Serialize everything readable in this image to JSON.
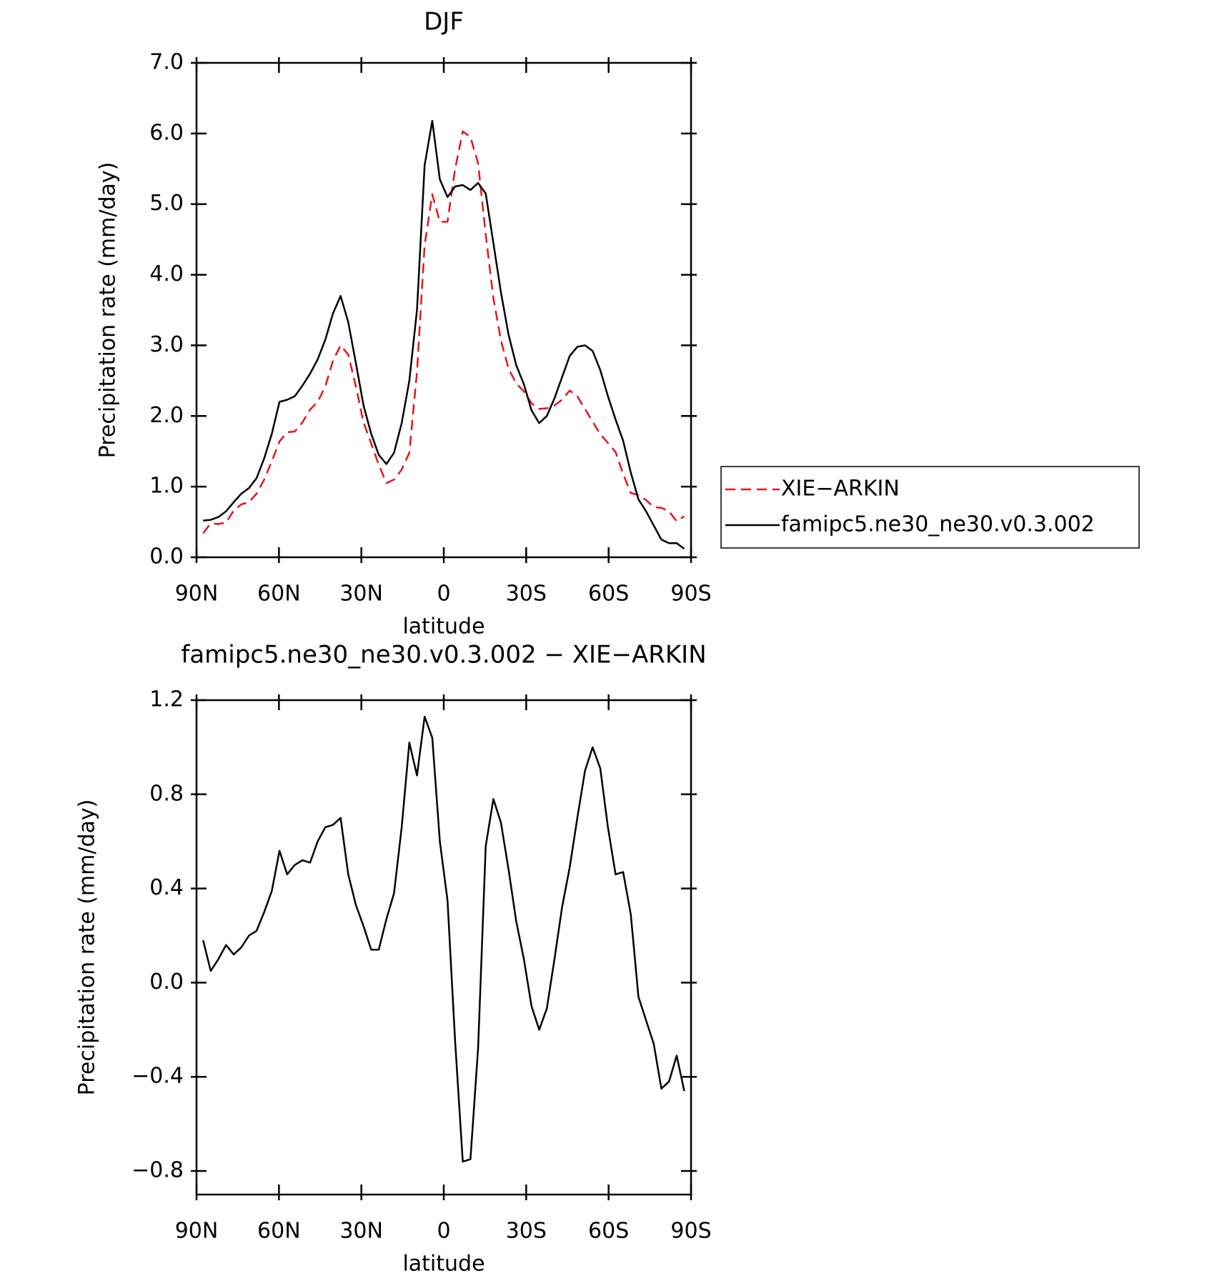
{
  "chart_data": [
    {
      "type": "line",
      "title": "DJF",
      "xlabel": "latitude",
      "ylabel": "Precipitation rate (mm/day)",
      "x": [
        87.6,
        84.82,
        82.04,
        79.26,
        76.48,
        73.7,
        70.92,
        68.14,
        65.36,
        62.58,
        59.8,
        57.02,
        54.24,
        51.46,
        48.68,
        45.9,
        43.12,
        40.34,
        37.56,
        34.78,
        32.0,
        29.22,
        26.44,
        23.66,
        20.88,
        18.1,
        15.32,
        12.54,
        9.76,
        6.98,
        4.2,
        1.42,
        -1.36,
        -4.14,
        -6.92,
        -9.7,
        -12.48,
        -15.26,
        -18.04,
        -20.82,
        -23.6,
        -26.38,
        -29.16,
        -31.94,
        -34.72,
        -37.5,
        -40.28,
        -43.06,
        -45.84,
        -48.62,
        -51.4,
        -54.18,
        -56.96,
        -59.74,
        -62.52,
        -65.3,
        -68.08,
        -70.86,
        -73.64,
        -76.42,
        -79.2,
        -81.98,
        -84.76,
        -87.54
      ],
      "series": [
        {
          "name": "XIE−ARKIN",
          "color": "#e8141c",
          "dash": true,
          "values": [
            0.34,
            0.48,
            0.47,
            0.49,
            0.66,
            0.75,
            0.78,
            0.9,
            1.1,
            1.36,
            1.64,
            1.77,
            1.78,
            1.91,
            2.09,
            2.2,
            2.42,
            2.78,
            3.0,
            2.87,
            2.42,
            1.91,
            1.61,
            1.31,
            1.05,
            1.1,
            1.24,
            1.48,
            2.62,
            4.42,
            5.14,
            4.75,
            4.75,
            5.5,
            6.03,
            5.95,
            5.58,
            4.57,
            3.67,
            3.07,
            2.67,
            2.46,
            2.35,
            2.18,
            2.1,
            2.11,
            2.15,
            2.23,
            2.36,
            2.28,
            2.1,
            1.92,
            1.74,
            1.62,
            1.49,
            1.18,
            0.91,
            0.88,
            0.81,
            0.71,
            0.7,
            0.65,
            0.51,
            0.58
          ]
        },
        {
          "name": "famipc5.ne30_ne30.v0.3.002",
          "color": "#000000",
          "dash": false,
          "values": [
            0.52,
            0.53,
            0.57,
            0.65,
            0.78,
            0.9,
            0.98,
            1.12,
            1.4,
            1.75,
            2.2,
            2.23,
            2.28,
            2.43,
            2.6,
            2.8,
            3.08,
            3.45,
            3.7,
            3.33,
            2.75,
            2.15,
            1.75,
            1.45,
            1.32,
            1.48,
            1.9,
            2.5,
            3.5,
            5.55,
            6.18,
            5.35,
            5.1,
            5.25,
            5.27,
            5.2,
            5.3,
            5.15,
            4.45,
            3.75,
            3.15,
            2.72,
            2.45,
            2.08,
            1.9,
            2.0,
            2.25,
            2.55,
            2.85,
            2.98,
            3.0,
            2.92,
            2.65,
            2.28,
            1.95,
            1.65,
            1.2,
            0.82,
            0.65,
            0.45,
            0.25,
            0.2,
            0.2,
            0.12
          ]
        }
      ],
      "xlim": [
        90,
        -90
      ],
      "xticks": [
        {
          "value": 90,
          "label": "90N"
        },
        {
          "value": 60,
          "label": "60N"
        },
        {
          "value": 30,
          "label": "30N"
        },
        0,
        {
          "value": -30,
          "label": "30S"
        },
        {
          "value": -60,
          "label": "60S"
        },
        {
          "value": -90,
          "label": "90S"
        }
      ],
      "ylim": [
        0,
        7
      ],
      "yticks": [
        {
          "value": 0,
          "label": "0.0"
        },
        {
          "value": 1,
          "label": "1.0"
        },
        {
          "value": 2,
          "label": "2.0"
        },
        {
          "value": 3,
          "label": "3.0"
        },
        {
          "value": 4,
          "label": "4.0"
        },
        {
          "value": 5,
          "label": "5.0"
        },
        {
          "value": 6,
          "label": "6.0"
        },
        {
          "value": 7,
          "label": "7.0"
        }
      ],
      "legend": "outside-right"
    },
    {
      "type": "line",
      "title": "famipc5.ne30_ne30.v0.3.002 − XIE−ARKIN",
      "xlabel": "latitude",
      "ylabel": "Precipitation rate (mm/day)",
      "x": [
        87.6,
        84.82,
        82.04,
        79.26,
        76.48,
        73.7,
        70.92,
        68.14,
        65.36,
        62.58,
        59.8,
        57.02,
        54.24,
        51.46,
        48.68,
        45.9,
        43.12,
        40.34,
        37.56,
        34.78,
        32.0,
        29.22,
        26.44,
        23.66,
        20.88,
        18.1,
        15.32,
        12.54,
        9.76,
        6.98,
        4.2,
        1.42,
        -1.36,
        -4.14,
        -6.92,
        -9.7,
        -12.48,
        -15.26,
        -18.04,
        -20.82,
        -23.6,
        -26.38,
        -29.16,
        -31.94,
        -34.72,
        -37.5,
        -40.28,
        -43.06,
        -45.84,
        -48.62,
        -51.4,
        -54.18,
        -56.96,
        -59.74,
        -62.52,
        -65.3,
        -68.08,
        -70.86,
        -73.64,
        -76.42,
        -79.2,
        -81.98,
        -84.76,
        -87.54
      ],
      "values": [
        0.18,
        0.05,
        0.1,
        0.16,
        0.12,
        0.15,
        0.2,
        0.22,
        0.3,
        0.39,
        0.56,
        0.46,
        0.5,
        0.52,
        0.51,
        0.6,
        0.66,
        0.67,
        0.7,
        0.46,
        0.33,
        0.24,
        0.14,
        0.14,
        0.27,
        0.38,
        0.66,
        1.02,
        0.88,
        1.13,
        1.04,
        0.6,
        0.35,
        -0.25,
        -0.76,
        -0.75,
        -0.28,
        0.58,
        0.78,
        0.68,
        0.48,
        0.26,
        0.1,
        -0.1,
        -0.2,
        -0.11,
        0.1,
        0.32,
        0.49,
        0.7,
        0.9,
        1.0,
        0.91,
        0.66,
        0.46,
        0.47,
        0.29,
        -0.06,
        -0.16,
        -0.26,
        -0.45,
        -0.42,
        -0.31,
        -0.46
      ],
      "color": "#000000",
      "xlim": [
        90,
        -90
      ],
      "xticks": [
        {
          "value": 90,
          "label": "90N"
        },
        {
          "value": 60,
          "label": "60N"
        },
        {
          "value": 30,
          "label": "30N"
        },
        0,
        {
          "value": -30,
          "label": "30S"
        },
        {
          "value": -60,
          "label": "60S"
        },
        {
          "value": -90,
          "label": "90S"
        }
      ],
      "ylim": [
        -0.9,
        1.2
      ],
      "yticks": [
        {
          "value": -0.8,
          "label": "−0.8"
        },
        {
          "value": -0.4,
          "label": "−0.4"
        },
        {
          "value": 0,
          "label": "0.0"
        },
        0.4,
        0.8,
        1.2
      ]
    }
  ]
}
